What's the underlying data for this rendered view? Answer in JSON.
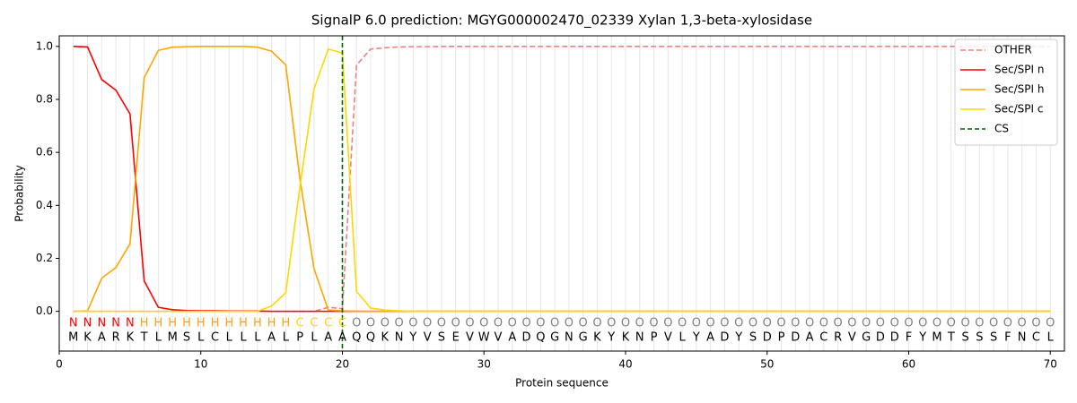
{
  "chart_data": {
    "type": "line",
    "title": "SignalP 6.0 prediction: MGYG000002470_02339 Xylan 1,3-beta-xylosidase",
    "xlabel": "Protein sequence",
    "ylabel": "Probability",
    "xlim": [
      0,
      71
    ],
    "ylim": [
      -0.15,
      1.04
    ],
    "xticks": [
      0,
      10,
      20,
      30,
      40,
      50,
      60,
      70
    ],
    "yticks": [
      {
        "value": 0,
        "label": "0.0"
      },
      {
        "value": 0.2,
        "label": "0.2"
      },
      {
        "value": 0.4,
        "label": "0.4"
      },
      {
        "value": 0.6,
        "label": "0.6"
      },
      {
        "value": 0.8,
        "label": "0.8"
      },
      {
        "value": 1.0,
        "label": "1.0"
      }
    ],
    "position_grid": true,
    "legend": "upper right",
    "x": [
      1,
      2,
      3,
      4,
      5,
      6,
      7,
      8,
      9,
      10,
      11,
      12,
      13,
      14,
      15,
      16,
      17,
      18,
      19,
      20,
      21,
      22,
      23,
      24,
      25,
      26,
      27,
      28,
      29,
      30,
      31,
      32,
      33,
      34,
      35,
      36,
      37,
      38,
      39,
      40,
      41,
      42,
      43,
      44,
      45,
      46,
      47,
      48,
      49,
      50,
      51,
      52,
      53,
      54,
      55,
      56,
      57,
      58,
      59,
      60,
      61,
      62,
      63,
      64,
      65,
      66,
      67,
      68,
      69,
      70
    ],
    "series": [
      {
        "name": "OTHER",
        "color": "#f08080",
        "dashed": true,
        "values": [
          0,
          0,
          0,
          0,
          0,
          0,
          0,
          0,
          0,
          0,
          0,
          0,
          0,
          0,
          0,
          0,
          0,
          0,
          0.015,
          0.01,
          0.93,
          0.99,
          0.995,
          0.998,
          0.999,
          0.999,
          1,
          1,
          1,
          1,
          1,
          1,
          1,
          1,
          1,
          1,
          1,
          1,
          1,
          1,
          1,
          1,
          1,
          1,
          1,
          1,
          1,
          1,
          1,
          1,
          1,
          1,
          1,
          1,
          1,
          1,
          1,
          1,
          1,
          1,
          1,
          1,
          1,
          1,
          1,
          1,
          1,
          1,
          1,
          1
        ]
      },
      {
        "name": "Sec/SPI n",
        "color": "#ff0000",
        "dashed": false,
        "values": [
          1.0,
          0.998,
          0.875,
          0.835,
          0.745,
          0.115,
          0.015,
          0.006,
          0.003,
          0.002,
          0.002,
          0.001,
          0.001,
          0.001,
          0,
          0,
          0,
          0,
          0,
          0,
          0,
          0,
          0,
          0,
          0,
          0,
          0,
          0,
          0,
          0,
          0,
          0,
          0,
          0,
          0,
          0,
          0,
          0,
          0,
          0,
          0,
          0,
          0,
          0,
          0,
          0,
          0,
          0,
          0,
          0,
          0,
          0,
          0,
          0,
          0,
          0,
          0,
          0,
          0,
          0,
          0,
          0,
          0,
          0,
          0,
          0,
          0,
          0,
          0,
          0
        ]
      },
      {
        "name": "Sec/SPI h",
        "color": "#ffa500",
        "dashed": false,
        "values": [
          0,
          0.002,
          0.125,
          0.165,
          0.255,
          0.882,
          0.985,
          0.997,
          0.999,
          1.0,
          1.0,
          1.0,
          1.0,
          0.997,
          0.982,
          0.93,
          0.5,
          0.16,
          0.005,
          0.002,
          0,
          0,
          0,
          0,
          0,
          0,
          0,
          0,
          0,
          0,
          0,
          0,
          0,
          0,
          0,
          0,
          0,
          0,
          0,
          0,
          0,
          0,
          0,
          0,
          0,
          0,
          0,
          0,
          0,
          0,
          0,
          0,
          0,
          0,
          0,
          0,
          0,
          0,
          0,
          0,
          0,
          0,
          0,
          0,
          0,
          0,
          0,
          0,
          0,
          0
        ]
      },
      {
        "name": "Sec/SPI c",
        "color": "#ffd700",
        "dashed": false,
        "values": [
          0,
          0,
          0,
          0,
          0,
          0,
          0,
          0,
          0,
          0,
          0,
          0,
          0,
          0,
          0.02,
          0.07,
          0.47,
          0.84,
          0.99,
          0.975,
          0.075,
          0.012,
          0.005,
          0.002,
          0,
          0,
          0,
          0,
          0,
          0,
          0,
          0,
          0,
          0,
          0,
          0,
          0,
          0,
          0,
          0,
          0,
          0,
          0,
          0,
          0,
          0,
          0,
          0,
          0,
          0,
          0,
          0,
          0,
          0,
          0,
          0,
          0,
          0,
          0,
          0,
          0,
          0,
          0,
          0,
          0,
          0,
          0,
          0,
          0,
          0
        ]
      }
    ],
    "cs": {
      "name": "CS",
      "color": "#006400",
      "x": 20
    },
    "residue_labels": [
      "N",
      "N",
      "N",
      "N",
      "N",
      "H",
      "H",
      "H",
      "H",
      "H",
      "H",
      "H",
      "H",
      "H",
      "H",
      "H",
      "C",
      "C",
      "C",
      "C",
      "O",
      "O",
      "O",
      "O",
      "O",
      "O",
      "O",
      "O",
      "O",
      "O",
      "O",
      "O",
      "O",
      "O",
      "O",
      "O",
      "O",
      "O",
      "O",
      "O",
      "O",
      "O",
      "O",
      "O",
      "O",
      "O",
      "O",
      "O",
      "O",
      "O",
      "O",
      "O",
      "O",
      "O",
      "O",
      "O",
      "O",
      "O",
      "O",
      "O",
      "O",
      "O",
      "O",
      "O",
      "O",
      "O",
      "O",
      "O",
      "O",
      "O"
    ],
    "label_colors": {
      "N": "#ff0000",
      "H": "#ffa500",
      "C": "#ffd700",
      "O": "#808080"
    },
    "sequence": [
      "M",
      "K",
      "A",
      "R",
      "K",
      "T",
      "L",
      "M",
      "S",
      "L",
      "C",
      "L",
      "L",
      "L",
      "A",
      "L",
      "P",
      "L",
      "A",
      "A",
      "Q",
      "Q",
      "K",
      "N",
      "Y",
      "V",
      "S",
      "E",
      "V",
      "W",
      "V",
      "A",
      "D",
      "Q",
      "G",
      "N",
      "G",
      "K",
      "Y",
      "K",
      "N",
      "P",
      "V",
      "L",
      "Y",
      "A",
      "D",
      "Y",
      "S",
      "D",
      "P",
      "D",
      "A",
      "C",
      "R",
      "V",
      "G",
      "D",
      "D",
      "F",
      "Y",
      "M",
      "T",
      "S",
      "S",
      "S",
      "F",
      "N",
      "C",
      "L"
    ]
  }
}
